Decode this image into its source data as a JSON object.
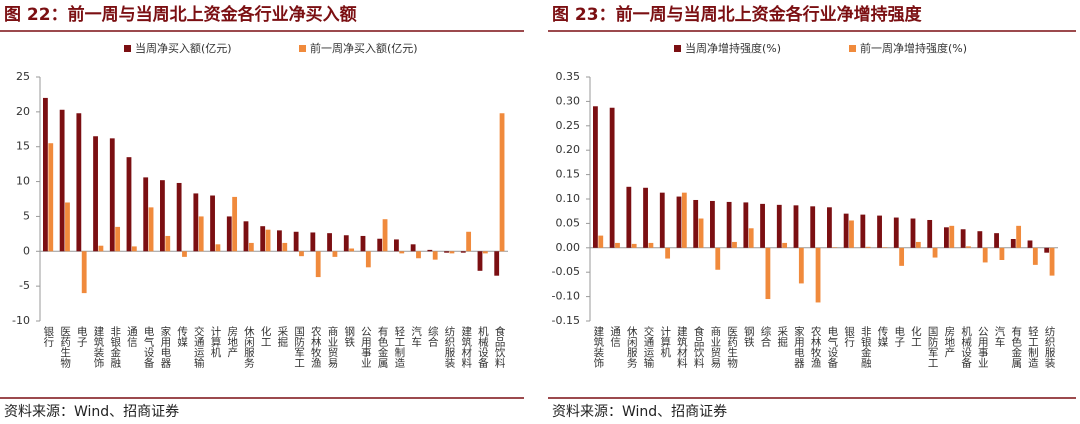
{
  "chart_data": [
    {
      "type": "bar",
      "title": "图 22：前一周与当周北上资金各行业净买入额",
      "categories": [
        "银行",
        "医药生物",
        "电子",
        "建筑装饰",
        "非银金融",
        "通信",
        "电气设备",
        "家用电器",
        "传媒",
        "交通运输",
        "计算机",
        "房地产",
        "休闲服务",
        "化工",
        "采掘",
        "国防军工",
        "农林牧渔",
        "商业贸易",
        "钢铁",
        "公用事业",
        "有色金属",
        "轻工制造",
        "汽车",
        "综合",
        "纺织服装",
        "建筑材料",
        "机械设备",
        "食品饮料"
      ],
      "series": [
        {
          "name": "当周净买入额(亿元)",
          "color": "#7b0f12",
          "values": [
            22,
            20.3,
            19.8,
            16.5,
            16.2,
            13.5,
            10.6,
            10.2,
            9.8,
            8.3,
            8,
            5,
            4.3,
            3.6,
            3,
            2.8,
            2.7,
            2.6,
            2.3,
            2.2,
            1.8,
            1.7,
            1,
            0.2,
            -0.2,
            -0.2,
            -2.8,
            -3.5
          ]
        },
        {
          "name": "前一周净买入额(亿元)",
          "color": "#f08a3c",
          "values": [
            15.5,
            7,
            -6,
            0.8,
            3.5,
            0.7,
            6.3,
            2.2,
            -0.8,
            5,
            1,
            7.8,
            1.2,
            3.1,
            1.2,
            -0.7,
            -3.7,
            -0.8,
            0.4,
            -2.3,
            4.6,
            -0.3,
            -1,
            -1.2,
            -0.3,
            2.8,
            -0.3,
            19.8
          ]
        }
      ],
      "ylim": [
        -10,
        25
      ],
      "yticks": [
        -10,
        -5,
        0,
        5,
        10,
        15,
        20,
        25
      ],
      "source": "资料来源：Wind、招商证券"
    },
    {
      "type": "bar",
      "title": "图 23：前一周与当周北上资金各行业净增持强度",
      "categories": [
        "建筑装饰",
        "通信",
        "休闲服务",
        "交通运输",
        "计算机",
        "建筑材料",
        "食品饮料",
        "商业贸易",
        "医药生物",
        "钢铁",
        "综合",
        "采掘",
        "家用电器",
        "农林牧渔",
        "电气设备",
        "银行",
        "非银金融",
        "传媒",
        "电子",
        "化工",
        "国防军工",
        "房地产",
        "机械设备",
        "公用事业",
        "汽车",
        "有色金属",
        "轻工制造",
        "纺织服装"
      ],
      "series": [
        {
          "name": "当周净增持强度(%)",
          "color": "#7b0f12",
          "values": [
            0.29,
            0.287,
            0.125,
            0.123,
            0.113,
            0.105,
            0.098,
            0.096,
            0.094,
            0.093,
            0.09,
            0.088,
            0.087,
            0.085,
            0.083,
            0.07,
            0.068,
            0.066,
            0.062,
            0.06,
            0.057,
            0.042,
            0.038,
            0.034,
            0.03,
            0.018,
            0.015,
            -0.01
          ]
        },
        {
          "name": "前一周净增持强度(%)",
          "color": "#f08a3c",
          "values": [
            0.025,
            0.01,
            0.008,
            0.01,
            -0.022,
            0.113,
            0.06,
            -0.045,
            0.012,
            0.04,
            -0.105,
            0.01,
            -0.073,
            -0.112,
            0.001,
            0.056,
            0.002,
            0.001,
            -0.037,
            0.012,
            -0.02,
            0.045,
            0.003,
            -0.03,
            -0.025,
            0.045,
            -0.035,
            -0.057
          ]
        }
      ],
      "ylim": [
        -0.15,
        0.35
      ],
      "yticks": [
        {
          "value": -0.15,
          "label": "-0.15"
        },
        {
          "value": -0.1,
          "label": "-0.10"
        },
        {
          "value": -0.05,
          "label": "-0.05"
        },
        {
          "value": 0,
          "label": "0.00"
        },
        {
          "value": 0.05,
          "label": "0.05"
        },
        {
          "value": 0.1,
          "label": "0.10"
        },
        {
          "value": 0.15,
          "label": "0.15"
        },
        {
          "value": 0.2,
          "label": "0.20"
        },
        {
          "value": 0.25,
          "label": "0.25"
        },
        {
          "value": 0.3,
          "label": "0.30"
        },
        {
          "value": 0.35,
          "label": "0.35"
        }
      ],
      "source": "资料来源：Wind、招商证券"
    }
  ]
}
